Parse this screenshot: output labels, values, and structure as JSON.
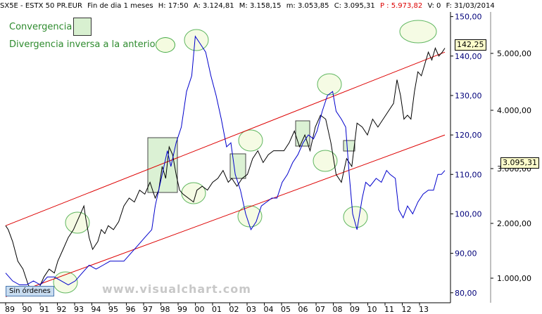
{
  "header": {
    "symbol": "SX5E - ESTX 50 PR.EUR",
    "period": "Fin de dia 1 meses",
    "high": "H: 17:50",
    "open": "A: 3.124,81",
    "max": "M: 3.158,15",
    "min": "m: 3.053,85",
    "close": "C: 3.095,31",
    "p_value": "P : 5.973,82",
    "v_value": "V: 0",
    "date": "F: 31/03/2014"
  },
  "legend": {
    "convergence": "Convergencia",
    "divergence": "Divergencia inversa a la anterior"
  },
  "status": {
    "orders": "Sin órdenes",
    "watermark": "www.visualchart.com"
  },
  "colors": {
    "black_series": "#000000",
    "blue_series": "#0000cc",
    "channel": "#dd0000",
    "ellipse_stroke": "#44aa44",
    "ellipse_fill": "#f4fbe0",
    "rect_fill": "#d8f0d0",
    "inner_axis_text": "#00007a",
    "p_value": "#dd0000"
  },
  "chart_data": {
    "type": "line",
    "x_ticks": [
      "89",
      "90",
      "91",
      "92",
      "93",
      "94",
      "95",
      "96",
      "97",
      "98",
      "99",
      "00",
      "01",
      "02",
      "03",
      "04",
      "05",
      "06",
      "07",
      "08",
      "09",
      "10",
      "11",
      "12",
      "13"
    ],
    "y_inner_ticks": [
      "150,00",
      "140,00",
      "130,00",
      "120,00",
      "110,00",
      "100,00",
      "90,00",
      "80,00"
    ],
    "y_outer_ticks": [
      "5.000,00",
      "4.000,00",
      "3.000,00",
      "2.000,00",
      "1.000,00"
    ],
    "y_inner_range": [
      78,
      151
    ],
    "badges": {
      "inner_last": "142,25",
      "outer_last": "3.095,31"
    },
    "series": [
      {
        "key": "black",
        "points": [
          [
            "1989.00",
            97
          ],
          [
            "1989.15",
            96
          ],
          [
            "1989.40",
            93
          ],
          [
            "1989.70",
            88
          ],
          [
            "1990.00",
            86
          ],
          [
            "1990.30",
            82
          ],
          [
            "1990.60",
            80
          ],
          [
            "1990.90",
            81
          ],
          [
            "1991.20",
            84
          ],
          [
            "1991.50",
            86
          ],
          [
            "1991.80",
            85
          ],
          [
            "1992.00",
            88
          ],
          [
            "1992.30",
            91
          ],
          [
            "1992.60",
            94
          ],
          [
            "1992.90",
            96
          ],
          [
            "1993.10",
            98
          ],
          [
            "1993.30",
            100
          ],
          [
            "1993.50",
            102
          ],
          [
            "1993.60",
            99
          ],
          [
            "1993.80",
            94
          ],
          [
            "1994.00",
            91
          ],
          [
            "1994.30",
            93
          ],
          [
            "1994.50",
            96
          ],
          [
            "1994.70",
            95
          ],
          [
            "1994.90",
            97
          ],
          [
            "1995.20",
            96
          ],
          [
            "1995.50",
            98
          ],
          [
            "1995.80",
            102
          ],
          [
            "1996.10",
            104
          ],
          [
            "1996.40",
            103
          ],
          [
            "1996.70",
            106
          ],
          [
            "1997.00",
            105
          ],
          [
            "1997.30",
            108
          ],
          [
            "1997.60",
            104
          ],
          [
            "1997.80",
            106
          ],
          [
            "1998.00",
            112
          ],
          [
            "1998.20",
            109
          ],
          [
            "1998.40",
            117
          ],
          [
            "1998.60",
            115
          ],
          [
            "1998.80",
            110
          ],
          [
            "1999.00",
            106
          ],
          [
            "1999.20",
            105
          ],
          [
            "1999.50",
            104
          ],
          [
            "1999.80",
            103
          ],
          [
            "2000.00",
            106
          ],
          [
            "2000.30",
            107
          ],
          [
            "2000.60",
            106
          ],
          [
            "2000.90",
            108
          ],
          [
            "2001.20",
            109
          ],
          [
            "2001.50",
            111
          ],
          [
            "2001.80",
            108
          ],
          [
            "2002.00",
            109
          ],
          [
            "2002.30",
            107
          ],
          [
            "2002.60",
            109
          ],
          [
            "2002.90",
            110
          ],
          [
            "2003.20",
            114
          ],
          [
            "2003.50",
            116
          ],
          [
            "2003.80",
            113
          ],
          [
            "2004.10",
            115
          ],
          [
            "2004.40",
            116
          ],
          [
            "2004.70",
            116
          ],
          [
            "2005.00",
            116
          ],
          [
            "2005.30",
            118
          ],
          [
            "2005.60",
            121
          ],
          [
            "2005.90",
            117
          ],
          [
            "2006.20",
            120
          ],
          [
            "2006.50",
            116
          ],
          [
            "2006.80",
            122
          ],
          [
            "2007.10",
            125
          ],
          [
            "2007.40",
            124
          ],
          [
            "2007.70",
            118
          ],
          [
            "2008.00",
            110
          ],
          [
            "2008.30",
            108
          ],
          [
            "2008.60",
            114
          ],
          [
            "2008.90",
            112
          ],
          [
            "2009.20",
            123
          ],
          [
            "2009.50",
            122
          ],
          [
            "2009.80",
            120
          ],
          [
            "2010.10",
            124
          ],
          [
            "2010.40",
            122
          ],
          [
            "2010.70",
            124
          ],
          [
            "2011.00",
            126
          ],
          [
            "2011.30",
            128
          ],
          [
            "2011.50",
            134
          ],
          [
            "2011.70",
            130
          ],
          [
            "2011.90",
            124
          ],
          [
            "2012.10",
            125
          ],
          [
            "2012.30",
            124
          ],
          [
            "2012.50",
            131
          ],
          [
            "2012.70",
            136
          ],
          [
            "2012.90",
            135
          ],
          [
            "2013.10",
            138
          ],
          [
            "2013.30",
            141
          ],
          [
            "2013.50",
            139
          ],
          [
            "2013.70",
            142
          ],
          [
            "2013.90",
            140
          ],
          [
            "2014.10",
            141
          ],
          [
            "2014.25",
            142
          ]
        ]
      },
      {
        "key": "blue",
        "points": [
          [
            "1989.00",
            85
          ],
          [
            "1989.40",
            83
          ],
          [
            "1989.80",
            82
          ],
          [
            "1990.20",
            82
          ],
          [
            "1990.60",
            83
          ],
          [
            "1991.00",
            82
          ],
          [
            "1991.40",
            84
          ],
          [
            "1991.80",
            84
          ],
          [
            "1992.20",
            83
          ],
          [
            "1992.60",
            82
          ],
          [
            "1993.00",
            83
          ],
          [
            "1993.40",
            85
          ],
          [
            "1993.80",
            87
          ],
          [
            "1994.20",
            86
          ],
          [
            "1994.60",
            87
          ],
          [
            "1995.00",
            88
          ],
          [
            "1995.40",
            88
          ],
          [
            "1995.80",
            88
          ],
          [
            "1996.20",
            90
          ],
          [
            "1996.60",
            92
          ],
          [
            "1997.00",
            94
          ],
          [
            "1997.40",
            96
          ],
          [
            "1997.60",
            102
          ],
          [
            "1997.80",
            106
          ],
          [
            "1998.00",
            110
          ],
          [
            "1998.30",
            116
          ],
          [
            "1998.50",
            112
          ],
          [
            "1998.80",
            118
          ],
          [
            "1999.10",
            122
          ],
          [
            "1999.40",
            131
          ],
          [
            "1999.70",
            135
          ],
          [
            "1999.90",
            145
          ],
          [
            "2000.20",
            143
          ],
          [
            "2000.50",
            141
          ],
          [
            "2000.80",
            135
          ],
          [
            "2001.10",
            130
          ],
          [
            "2001.40",
            124
          ],
          [
            "2001.70",
            117
          ],
          [
            "2001.95",
            118
          ],
          [
            "2002.20",
            110
          ],
          [
            "2002.50",
            106
          ],
          [
            "2002.80",
            100
          ],
          [
            "2003.10",
            96
          ],
          [
            "2003.40",
            98
          ],
          [
            "2003.70",
            102
          ],
          [
            "2004.00",
            103
          ],
          [
            "2004.30",
            104
          ],
          [
            "2004.60",
            104
          ],
          [
            "2004.90",
            108
          ],
          [
            "2005.20",
            110
          ],
          [
            "2005.50",
            113
          ],
          [
            "2005.80",
            115
          ],
          [
            "2006.10",
            118
          ],
          [
            "2006.40",
            120
          ],
          [
            "2006.70",
            119
          ],
          [
            "2006.90",
            121
          ],
          [
            "2007.20",
            126
          ],
          [
            "2007.50",
            130
          ],
          [
            "2007.80",
            131
          ],
          [
            "2008.00",
            126
          ],
          [
            "2008.30",
            124
          ],
          [
            "2008.55",
            122
          ],
          [
            "2008.75",
            110
          ],
          [
            "2008.95",
            100
          ],
          [
            "2009.20",
            96
          ],
          [
            "2009.50",
            104
          ],
          [
            "2009.70",
            108
          ],
          [
            "2009.95",
            107
          ],
          [
            "2010.30",
            109
          ],
          [
            "2010.60",
            108
          ],
          [
            "2010.90",
            111
          ],
          [
            "2011.10",
            110
          ],
          [
            "2011.40",
            109
          ],
          [
            "2011.60",
            101
          ],
          [
            "2011.85",
            99
          ],
          [
            "2012.10",
            102
          ],
          [
            "2012.40",
            100
          ],
          [
            "2012.70",
            103
          ],
          [
            "2013.00",
            105
          ],
          [
            "2013.30",
            106
          ],
          [
            "2013.60",
            106
          ],
          [
            "2013.85",
            110
          ],
          [
            "2014.05",
            110
          ],
          [
            "2014.25",
            111
          ]
        ]
      }
    ],
    "channel_lines": [
      {
        "name": "upper",
        "from": [
          "1989.00",
          97
        ],
        "to": [
          "2014.25",
          141
        ]
      },
      {
        "name": "lower",
        "from": [
          "1989.00",
          79
        ],
        "to": [
          "2014.25",
          120
        ]
      }
    ]
  }
}
